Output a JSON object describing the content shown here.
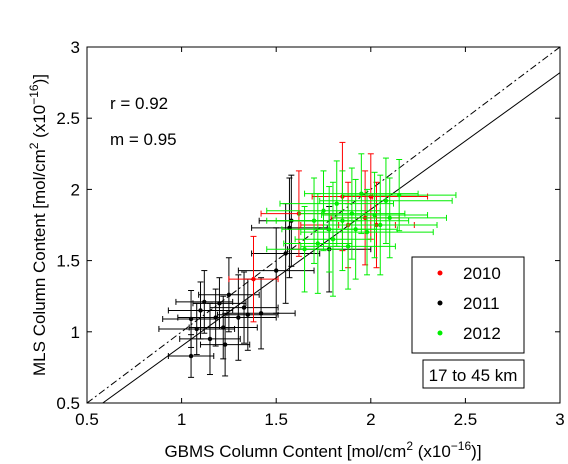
{
  "chart_data": {
    "type": "scatter",
    "xlabel": {
      "pre": "GBMS Column Content [mol/cm",
      "sup1": "2",
      "mid": " (x10",
      "sup2": "−16",
      "post": ")]"
    },
    "ylabel": {
      "pre": "MLS Column Content [mol/cm",
      "sup1": "2",
      "mid": " (x10",
      "sup2": "−16",
      "post": ")]"
    },
    "xlim": [
      0.5,
      3
    ],
    "ylim": [
      0.5,
      3
    ],
    "xticks": [
      "0.5",
      "1",
      "1.5",
      "2",
      "2.5",
      "3"
    ],
    "yticks": [
      "0.5",
      "1",
      "1.5",
      "2",
      "2.5",
      "3"
    ],
    "annotations": {
      "r": "r = 0.92",
      "m": "m = 0.95",
      "range": "17 to 45 km"
    },
    "lines": {
      "one_to_one": {
        "style": "dash-dot",
        "x": [
          0.5,
          3
        ],
        "y": [
          0.5,
          3
        ]
      },
      "fit": {
        "style": "solid",
        "x": [
          0.5,
          3
        ],
        "y": [
          0.42,
          2.82
        ]
      }
    },
    "legend_position": "lower-right",
    "series": [
      {
        "name": "2010",
        "color": "#ff0000",
        "points": [
          {
            "x": 1.38,
            "y": 1.37,
            "xerr": 0.13,
            "yerr": 0.3
          },
          {
            "x": 1.62,
            "y": 1.83,
            "xerr": 0.2,
            "yerr": 0.3
          },
          {
            "x": 1.85,
            "y": 1.95,
            "xerr": 0.16,
            "yerr": 0.38
          },
          {
            "x": 1.88,
            "y": 1.75,
            "xerr": 0.25,
            "yerr": 0.3
          },
          {
            "x": 1.97,
            "y": 1.8,
            "xerr": 0.18,
            "yerr": 0.33
          },
          {
            "x": 2.0,
            "y": 1.95,
            "xerr": 0.3,
            "yerr": 0.3
          },
          {
            "x": 2.03,
            "y": 1.75,
            "xerr": 0.2,
            "yerr": 0.3
          }
        ]
      },
      {
        "name": "2011",
        "color": "#000000",
        "points": [
          {
            "x": 1.05,
            "y": 0.83,
            "xerr": 0.12,
            "yerr": 0.15
          },
          {
            "x": 1.05,
            "y": 1.09,
            "xerr": 0.15,
            "yerr": 0.2
          },
          {
            "x": 1.08,
            "y": 1.02,
            "xerr": 0.2,
            "yerr": 0.18
          },
          {
            "x": 1.1,
            "y": 1.15,
            "xerr": 0.17,
            "yerr": 0.2
          },
          {
            "x": 1.12,
            "y": 1.21,
            "xerr": 0.15,
            "yerr": 0.22
          },
          {
            "x": 1.15,
            "y": 0.95,
            "xerr": 0.16,
            "yerr": 0.25
          },
          {
            "x": 1.18,
            "y": 1.1,
            "xerr": 0.2,
            "yerr": 0.2
          },
          {
            "x": 1.2,
            "y": 1.2,
            "xerr": 0.14,
            "yerr": 0.18
          },
          {
            "x": 1.22,
            "y": 1.03,
            "xerr": 0.18,
            "yerr": 0.22
          },
          {
            "x": 1.23,
            "y": 0.91,
            "xerr": 0.13,
            "yerr": 0.22
          },
          {
            "x": 1.25,
            "y": 1.26,
            "xerr": 0.16,
            "yerr": 0.26
          },
          {
            "x": 1.3,
            "y": 1.1,
            "xerr": 0.2,
            "yerr": 0.3
          },
          {
            "x": 1.33,
            "y": 1.17,
            "xerr": 0.18,
            "yerr": 0.25
          },
          {
            "x": 1.35,
            "y": 1.12,
            "xerr": 0.16,
            "yerr": 0.25
          },
          {
            "x": 1.42,
            "y": 1.13,
            "xerr": 0.18,
            "yerr": 0.25
          },
          {
            "x": 1.5,
            "y": 1.43,
            "xerr": 0.2,
            "yerr": 0.3
          },
          {
            "x": 1.55,
            "y": 1.55,
            "xerr": 0.18,
            "yerr": 0.35
          },
          {
            "x": 1.57,
            "y": 1.73,
            "xerr": 0.2,
            "yerr": 0.35
          },
          {
            "x": 1.58,
            "y": 1.78,
            "xerr": 0.17,
            "yerr": 0.32
          },
          {
            "x": 1.78,
            "y": 1.58,
            "xerr": 0.22,
            "yerr": 0.3
          }
        ]
      },
      {
        "name": "2012",
        "color": "#00ee00",
        "points": [
          {
            "x": 1.65,
            "y": 1.58,
            "xerr": 0.2,
            "yerr": 0.3
          },
          {
            "x": 1.7,
            "y": 1.78,
            "xerr": 0.25,
            "yerr": 0.3
          },
          {
            "x": 1.72,
            "y": 1.62,
            "xerr": 0.18,
            "yerr": 0.35
          },
          {
            "x": 1.75,
            "y": 1.85,
            "xerr": 0.3,
            "yerr": 0.28
          },
          {
            "x": 1.78,
            "y": 1.72,
            "xerr": 0.25,
            "yerr": 0.3
          },
          {
            "x": 1.8,
            "y": 1.65,
            "xerr": 0.2,
            "yerr": 0.4
          },
          {
            "x": 1.82,
            "y": 1.9,
            "xerr": 0.3,
            "yerr": 0.3
          },
          {
            "x": 1.85,
            "y": 1.78,
            "xerr": 0.35,
            "yerr": 0.35
          },
          {
            "x": 1.88,
            "y": 1.6,
            "xerr": 0.25,
            "yerr": 0.3
          },
          {
            "x": 1.9,
            "y": 1.83,
            "xerr": 0.28,
            "yerr": 0.32
          },
          {
            "x": 1.92,
            "y": 1.72,
            "xerr": 0.22,
            "yerr": 0.35
          },
          {
            "x": 1.95,
            "y": 1.97,
            "xerr": 0.3,
            "yerr": 0.28
          },
          {
            "x": 1.98,
            "y": 1.7,
            "xerr": 0.35,
            "yerr": 0.3
          },
          {
            "x": 2.02,
            "y": 1.82,
            "xerr": 0.28,
            "yerr": 0.3
          },
          {
            "x": 2.05,
            "y": 1.75,
            "xerr": 0.3,
            "yerr": 0.35
          },
          {
            "x": 2.08,
            "y": 1.92,
            "xerr": 0.35,
            "yerr": 0.3
          },
          {
            "x": 2.1,
            "y": 1.8,
            "xerr": 0.3,
            "yerr": 0.28
          },
          {
            "x": 2.15,
            "y": 1.96,
            "xerr": 0.3,
            "yerr": 0.25
          }
        ]
      }
    ]
  }
}
